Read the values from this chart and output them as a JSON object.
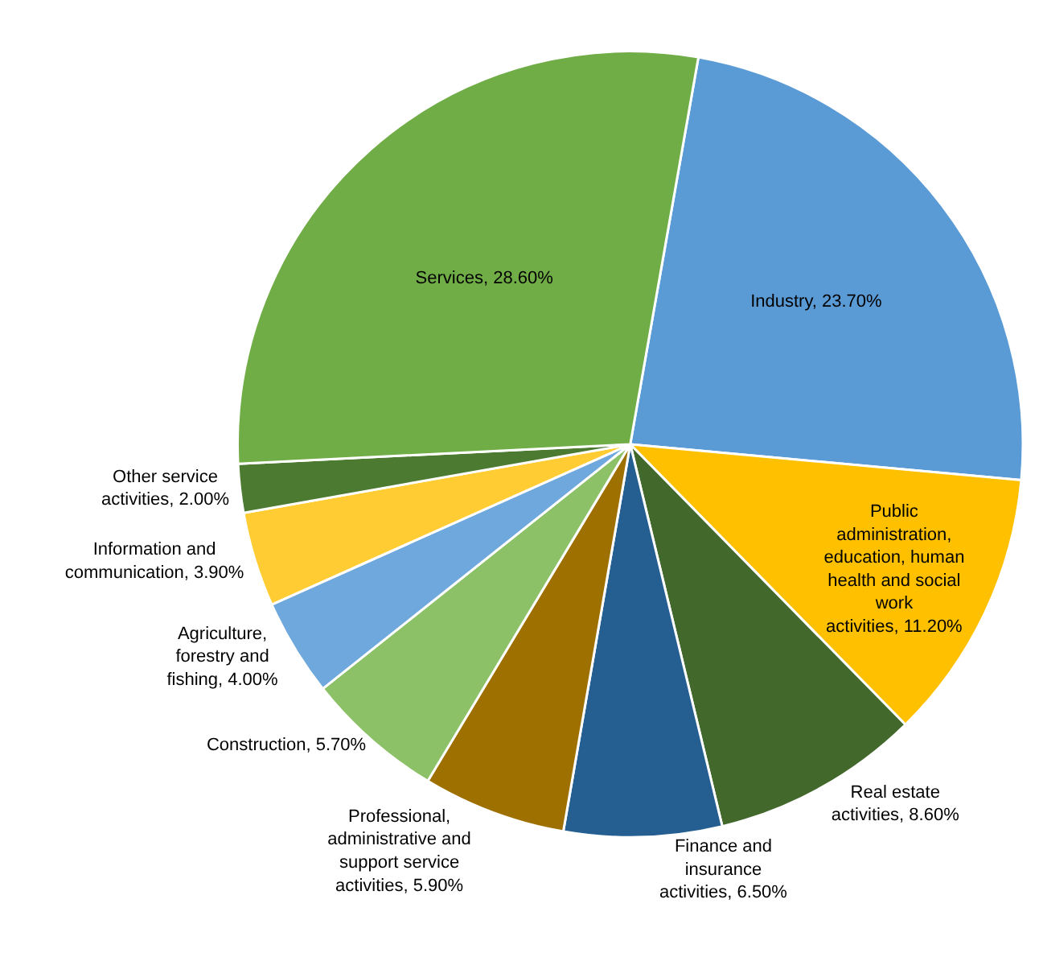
{
  "chart_data": {
    "type": "pie",
    "categories": [
      "Industry",
      "Public administration, education, human health and social work activities",
      "Real estate activities",
      "Finance and insurance activities",
      "Professional, administrative and support service activities",
      "Construction",
      "Agriculture, forestry and fishing",
      "Information and communication",
      "Other service activities",
      "Services"
    ],
    "values": [
      23.7,
      11.2,
      8.6,
      6.5,
      5.9,
      5.7,
      4.0,
      3.9,
      2.0,
      28.6
    ],
    "value_labels": [
      "23.70%",
      "11.20%",
      "8.60%",
      "6.50%",
      "5.90%",
      "5.70%",
      "4.00%",
      "3.90%",
      "2.00%",
      "28.60%"
    ],
    "colors": [
      "#5b9bd5",
      "#ffc000",
      "#43682b",
      "#255e91",
      "#9e7000",
      "#8cc168",
      "#6fa8dc",
      "#ffcd33",
      "#4b7a30",
      "#70ad47"
    ],
    "legend": false
  }
}
